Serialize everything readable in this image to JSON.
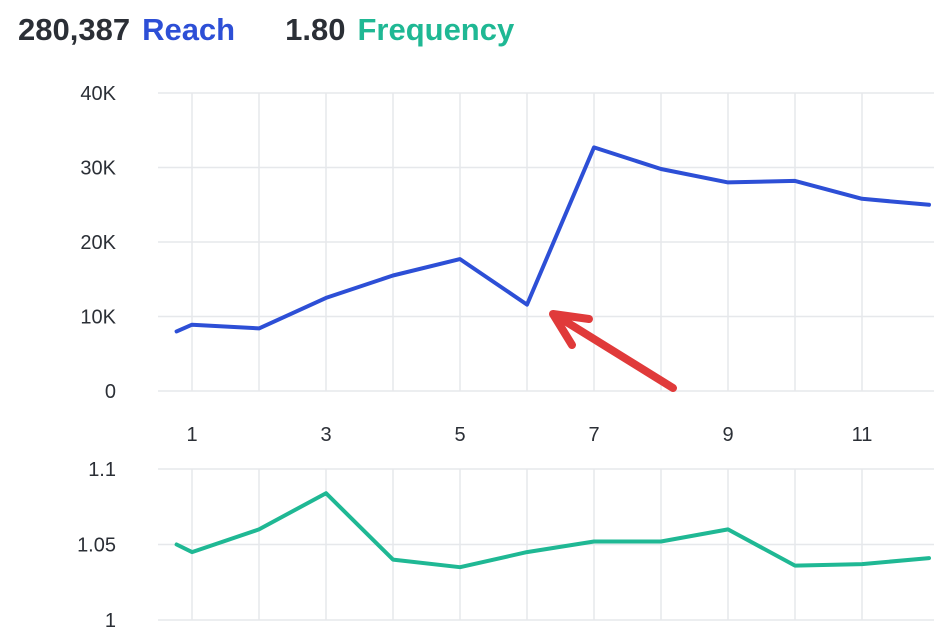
{
  "metrics": {
    "reach": {
      "value": "280,387",
      "label": "Reach",
      "color": "#2d4fd6"
    },
    "frequency": {
      "value": "1.80",
      "label": "Frequency",
      "color": "#1fb894"
    }
  },
  "annotation": {
    "type": "arrow",
    "color": "#e03a3a"
  },
  "chart_data": [
    {
      "type": "line",
      "title": "",
      "xlabel": "",
      "ylabel": "",
      "x": [
        0.77,
        1,
        2,
        3,
        4,
        5,
        6,
        7,
        8,
        9,
        10,
        11,
        12
      ],
      "series": [
        {
          "name": "Reach",
          "color": "#2d4fd6",
          "values": [
            8000,
            8900,
            8400,
            12500,
            15500,
            17700,
            11600,
            32700,
            29800,
            28000,
            28200,
            25800,
            25000
          ]
        }
      ],
      "ylim": [
        0,
        40000
      ],
      "yticks": [
        0,
        10000,
        20000,
        30000,
        40000
      ],
      "ytick_labels": [
        "0",
        "10K",
        "20K",
        "30K",
        "40K"
      ],
      "xticks": [
        1,
        3,
        5,
        7,
        9,
        11
      ],
      "xtick_labels": [
        "1",
        "3",
        "5",
        "7",
        "9",
        "11"
      ],
      "grid": true
    },
    {
      "type": "line",
      "title": "",
      "xlabel": "",
      "ylabel": "",
      "x": [
        0.77,
        1,
        2,
        3,
        4,
        5,
        6,
        7,
        8,
        9,
        10,
        11,
        12
      ],
      "series": [
        {
          "name": "Frequency",
          "color": "#1fb894",
          "values": [
            1.05,
            1.045,
            1.06,
            1.084,
            1.04,
            1.035,
            1.045,
            1.052,
            1.052,
            1.06,
            1.036,
            1.037,
            1.041
          ]
        }
      ],
      "ylim": [
        1,
        1.1
      ],
      "yticks": [
        1,
        1.05,
        1.1
      ],
      "ytick_labels": [
        "1",
        "1.05",
        "1.1"
      ],
      "grid": true
    }
  ]
}
